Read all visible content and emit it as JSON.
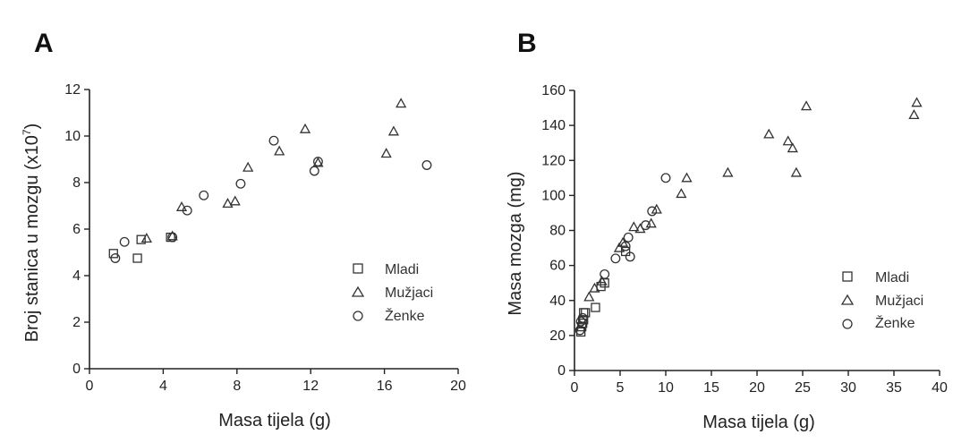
{
  "chart_data": [
    {
      "panel_label": "A",
      "type": "scatter",
      "xlabel": "Masa tijela (g)",
      "ylabel": "Broj stanica u mozgu (x10",
      "ylabel_sup": "7",
      "ylabel_end": ")",
      "xlim": [
        0,
        20
      ],
      "ylim": [
        0,
        12
      ],
      "x_ticks": [
        "0",
        "4",
        "8",
        "12",
        "16",
        "20"
      ],
      "y_ticks": [
        "0",
        "2",
        "4",
        "6",
        "8",
        "10",
        "12"
      ],
      "grid": false,
      "legend_position": "right-middle",
      "series": [
        {
          "name": "Mladi",
          "marker": "square",
          "x": [
            1.3,
            2.6,
            2.8,
            4.4
          ],
          "y": [
            4.95,
            4.75,
            5.55,
            5.65
          ]
        },
        {
          "name": "Mužjaci",
          "marker": "triangle",
          "x": [
            3.1,
            4.5,
            5.0,
            7.5,
            7.9,
            8.6,
            10.3,
            11.7,
            12.4,
            16.1,
            16.5,
            16.9
          ],
          "y": [
            5.6,
            5.7,
            6.95,
            7.1,
            7.2,
            8.65,
            9.35,
            10.3,
            8.85,
            9.25,
            10.2,
            11.4
          ]
        },
        {
          "name": "Ženke",
          "marker": "circle",
          "x": [
            1.4,
            1.9,
            4.5,
            5.3,
            6.2,
            8.2,
            10.0,
            12.2,
            12.4,
            18.3
          ],
          "y": [
            4.75,
            5.45,
            5.65,
            6.8,
            7.45,
            7.95,
            9.8,
            8.5,
            8.9,
            8.75
          ]
        }
      ]
    },
    {
      "panel_label": "B",
      "type": "scatter",
      "xlabel": "Masa tijela (g)",
      "ylabel": "Masa mozga (mg)",
      "xlim": [
        0,
        40
      ],
      "ylim": [
        0,
        160
      ],
      "x_ticks": [
        "0",
        "5",
        "10",
        "15",
        "20",
        "25",
        "30",
        "35",
        "40"
      ],
      "y_ticks": [
        "0",
        "20",
        "40",
        "60",
        "80",
        "100",
        "120",
        "140",
        "160"
      ],
      "grid": false,
      "legend_position": "bottom-right",
      "series": [
        {
          "name": "Mladi",
          "marker": "square",
          "x": [
            0.7,
            0.8,
            0.9,
            1.0,
            1.0,
            1.2,
            2.3,
            2.9,
            3.3,
            5.6
          ],
          "y": [
            22,
            25,
            27,
            29,
            33,
            33,
            36,
            48,
            50,
            68
          ]
        },
        {
          "name": "Mužjaci",
          "marker": "triangle",
          "x": [
            1.6,
            2.2,
            3.0,
            4.9,
            5.3,
            6.5,
            7.2,
            8.4,
            9.0,
            11.7,
            12.3,
            16.8,
            21.3,
            23.4,
            23.9,
            24.3,
            25.4,
            37.2,
            37.5
          ],
          "y": [
            42,
            47,
            51,
            70,
            73,
            82,
            81,
            84,
            92,
            101,
            110,
            113,
            135,
            131,
            127,
            113,
            151,
            146,
            153
          ]
        },
        {
          "name": "Ženke",
          "marker": "circle",
          "x": [
            0.6,
            0.7,
            0.9,
            3.3,
            4.5,
            5.6,
            5.9,
            6.1,
            7.8,
            8.5,
            10.0
          ],
          "y": [
            23,
            28,
            30,
            55,
            64,
            71,
            76,
            65,
            83,
            91,
            110
          ]
        }
      ]
    }
  ]
}
